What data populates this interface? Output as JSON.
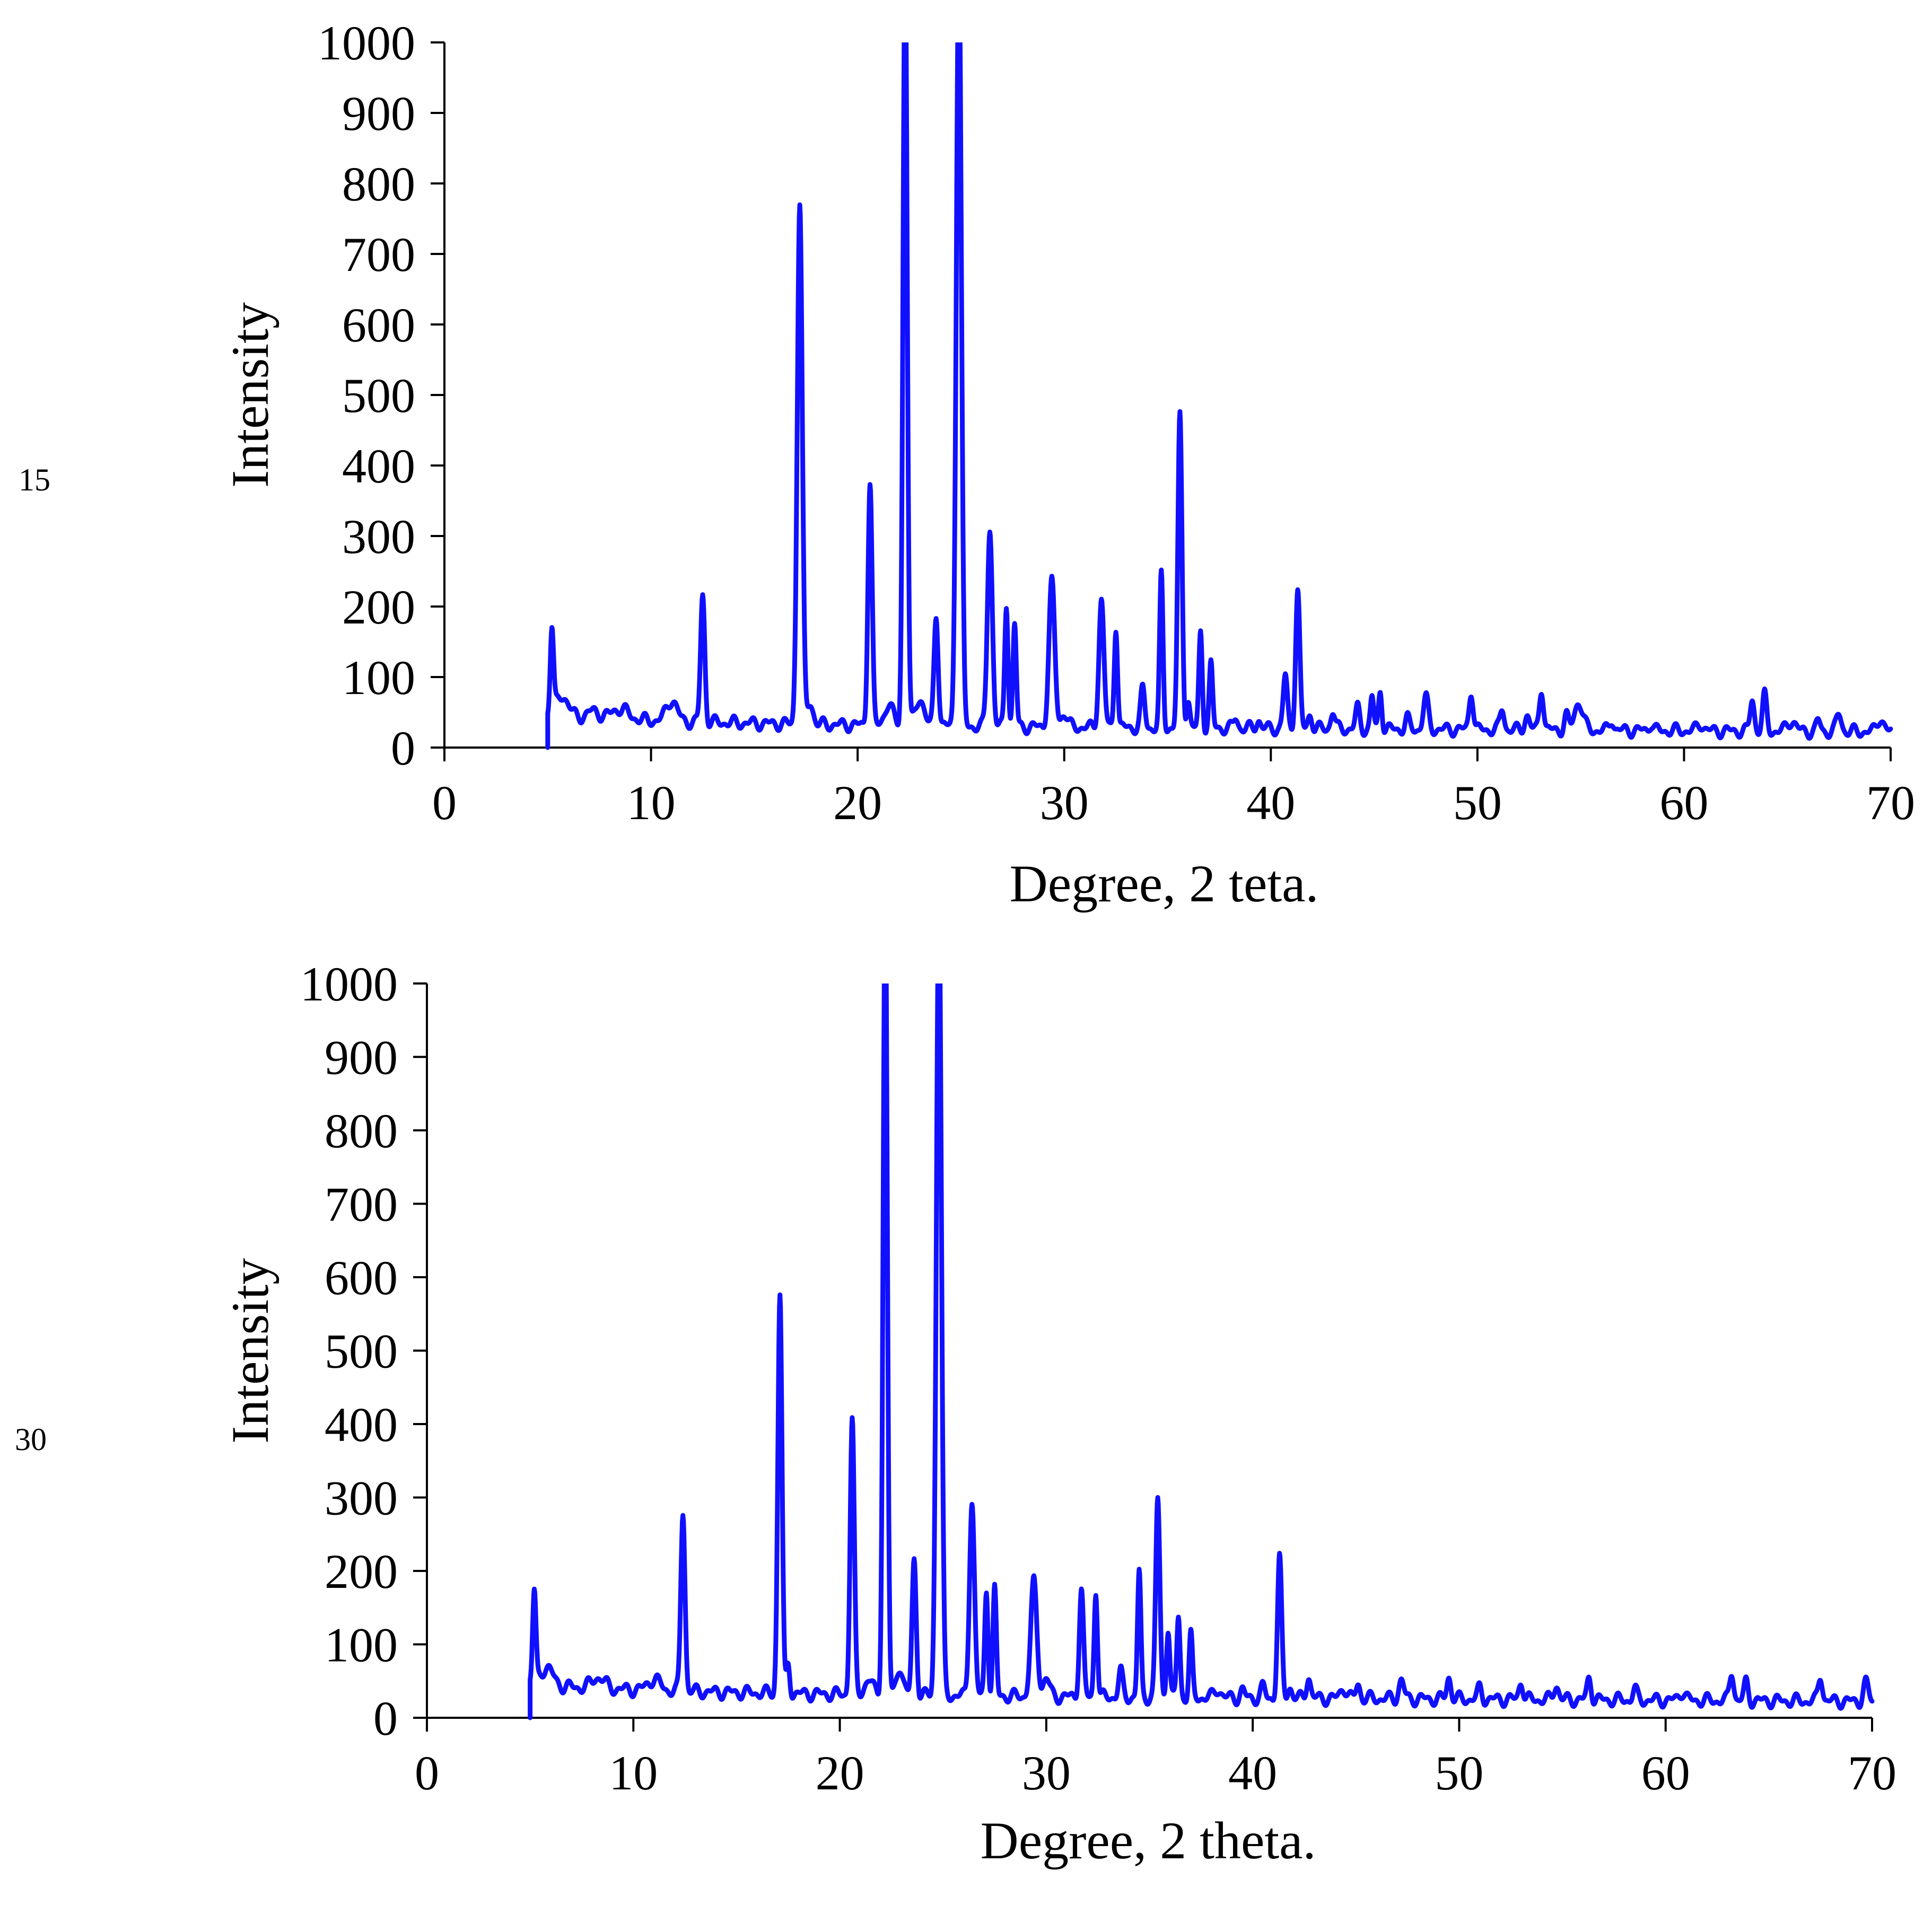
{
  "colors": {
    "series": "#1010ff",
    "axis": "#000000",
    "background": "#ffffff"
  },
  "chart_data": [
    {
      "type": "line",
      "panel_label": "15",
      "title": "",
      "xlabel": "Degree, 2 teta.",
      "ylabel": "Intensity",
      "xlim": [
        0,
        70
      ],
      "ylim": [
        0,
        1000
      ],
      "xticks": [
        "0",
        "10",
        "20",
        "30",
        "40",
        "50",
        "60",
        "70"
      ],
      "yticks": [
        "0",
        "100",
        "200",
        "300",
        "400",
        "500",
        "600",
        "700",
        "800",
        "900",
        "1000"
      ],
      "grid": false,
      "background": 45,
      "start_x": 5.0,
      "end_x": 70.0,
      "peaks": [
        [
          5.2,
          120,
          0.08
        ],
        [
          5.7,
          30,
          0.3
        ],
        [
          7.2,
          10,
          0.3
        ],
        [
          8.5,
          15,
          0.4
        ],
        [
          11.0,
          30,
          0.25
        ],
        [
          12.5,
          180,
          0.1
        ],
        [
          17.2,
          740,
          0.12
        ],
        [
          17.7,
          30,
          0.15
        ],
        [
          20.6,
          345,
          0.1
        ],
        [
          21.5,
          30,
          0.2
        ],
        [
          22.3,
          1100,
          0.1
        ],
        [
          23.0,
          40,
          0.2
        ],
        [
          23.8,
          160,
          0.1
        ],
        [
          24.9,
          1100,
          0.12
        ],
        [
          26.4,
          280,
          0.12
        ],
        [
          27.2,
          175,
          0.08
        ],
        [
          27.6,
          145,
          0.08
        ],
        [
          29.4,
          205,
          0.14
        ],
        [
          30.0,
          20,
          0.15
        ],
        [
          31.8,
          180,
          0.12
        ],
        [
          32.5,
          145,
          0.08
        ],
        [
          33.8,
          55,
          0.1
        ],
        [
          34.7,
          215,
          0.08
        ],
        [
          35.6,
          440,
          0.1
        ],
        [
          36.0,
          40,
          0.08
        ],
        [
          36.6,
          135,
          0.08
        ],
        [
          37.1,
          90,
          0.08
        ],
        [
          38.3,
          15,
          0.1
        ],
        [
          39.4,
          12,
          0.1
        ],
        [
          40.7,
          75,
          0.1
        ],
        [
          41.3,
          195,
          0.1
        ],
        [
          41.9,
          20,
          0.1
        ],
        [
          43.0,
          25,
          0.1
        ],
        [
          44.2,
          30,
          0.1
        ],
        [
          44.9,
          45,
          0.08
        ],
        [
          45.3,
          55,
          0.08
        ],
        [
          46.6,
          15,
          0.1
        ],
        [
          47.5,
          45,
          0.12
        ],
        [
          49.7,
          55,
          0.1
        ],
        [
          51.2,
          30,
          0.1
        ],
        [
          52.4,
          20,
          0.12
        ],
        [
          53.1,
          60,
          0.1
        ],
        [
          54.3,
          20,
          0.1
        ],
        [
          54.9,
          40,
          0.2
        ],
        [
          56.5,
          15,
          0.1
        ],
        [
          58.4,
          10,
          0.1
        ],
        [
          60.8,
          10,
          0.15
        ],
        [
          63.3,
          45,
          0.1
        ],
        [
          63.9,
          50,
          0.1
        ],
        [
          65.2,
          15,
          0.2
        ],
        [
          66.5,
          15,
          0.1
        ],
        [
          67.5,
          25,
          0.12
        ],
        [
          69.5,
          20,
          0.15
        ]
      ]
    },
    {
      "type": "line",
      "panel_label": "30",
      "title": "",
      "xlabel": "Degree, 2 theta.",
      "ylabel": "Intensity",
      "xlim": [
        0,
        70
      ],
      "ylim": [
        0,
        1000
      ],
      "xticks": [
        "0",
        "10",
        "20",
        "30",
        "40",
        "50",
        "60",
        "70"
      ],
      "yticks": [
        "0",
        "100",
        "200",
        "300",
        "400",
        "500",
        "600",
        "700",
        "800",
        "900",
        "1000"
      ],
      "grid": false,
      "background": 45,
      "start_x": 5.0,
      "end_x": 70.0,
      "peaks": [
        [
          5.2,
          125,
          0.08
        ],
        [
          5.8,
          25,
          0.3
        ],
        [
          8.3,
          15,
          0.3
        ],
        [
          11.0,
          15,
          0.3
        ],
        [
          12.4,
          245,
          0.1
        ],
        [
          17.1,
          545,
          0.1
        ],
        [
          17.5,
          40,
          0.08
        ],
        [
          20.6,
          375,
          0.1
        ],
        [
          21.4,
          20,
          0.2
        ],
        [
          22.2,
          1100,
          0.1
        ],
        [
          22.9,
          40,
          0.15
        ],
        [
          23.6,
          185,
          0.1
        ],
        [
          24.8,
          1100,
          0.12
        ],
        [
          26.4,
          265,
          0.12
        ],
        [
          27.1,
          145,
          0.08
        ],
        [
          27.5,
          145,
          0.08
        ],
        [
          29.4,
          155,
          0.15
        ],
        [
          30.0,
          25,
          0.15
        ],
        [
          31.7,
          145,
          0.1
        ],
        [
          32.4,
          145,
          0.08
        ],
        [
          33.6,
          35,
          0.1
        ],
        [
          34.5,
          170,
          0.08
        ],
        [
          35.4,
          270,
          0.1
        ],
        [
          35.9,
          95,
          0.08
        ],
        [
          36.4,
          110,
          0.08
        ],
        [
          37.0,
          85,
          0.08
        ],
        [
          38.3,
          12,
          0.15
        ],
        [
          39.5,
          10,
          0.1
        ],
        [
          40.5,
          15,
          0.1
        ],
        [
          41.3,
          190,
          0.1
        ],
        [
          41.8,
          15,
          0.1
        ],
        [
          42.7,
          30,
          0.1
        ],
        [
          44.4,
          15,
          0.15
        ],
        [
          45.1,
          20,
          0.1
        ],
        [
          47.2,
          25,
          0.12
        ],
        [
          49.5,
          30,
          0.1
        ],
        [
          51.0,
          15,
          0.1
        ],
        [
          53.0,
          25,
          0.1
        ],
        [
          54.7,
          20,
          0.12
        ],
        [
          56.3,
          30,
          0.1
        ],
        [
          58.5,
          15,
          0.1
        ],
        [
          60.8,
          12,
          0.15
        ],
        [
          63.2,
          40,
          0.1
        ],
        [
          63.9,
          25,
          0.1
        ],
        [
          67.5,
          35,
          0.1
        ],
        [
          69.7,
          25,
          0.12
        ]
      ]
    }
  ]
}
